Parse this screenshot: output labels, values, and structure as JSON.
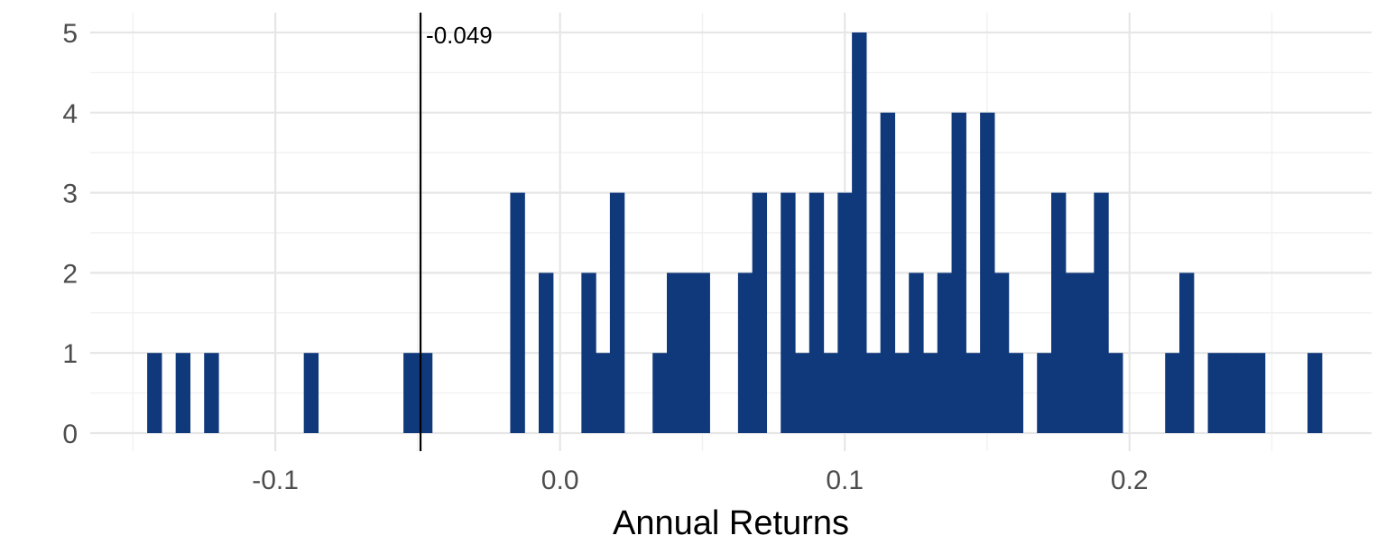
{
  "chart_data": {
    "type": "bar",
    "title": "",
    "xlabel": "Annual Returns",
    "ylabel": "",
    "xlim": [
      -0.165,
      0.285
    ],
    "ylim": [
      0,
      5
    ],
    "x_ticks": [
      "-0.1",
      "0.0",
      "0.1",
      "0.2"
    ],
    "x_tick_values": [
      -0.1,
      0.0,
      0.1,
      0.2
    ],
    "y_ticks": [
      "0",
      "1",
      "2",
      "3",
      "4",
      "5"
    ],
    "y_tick_values": [
      0,
      1,
      2,
      3,
      4,
      5
    ],
    "grid": true,
    "bin_width": 0.005,
    "bars_color": "#10397c",
    "bins": [
      {
        "x": -0.1425,
        "count": 1
      },
      {
        "x": -0.1325,
        "count": 1
      },
      {
        "x": -0.1225,
        "count": 1
      },
      {
        "x": -0.0875,
        "count": 1
      },
      {
        "x": -0.0525,
        "count": 1
      },
      {
        "x": -0.0475,
        "count": 1
      },
      {
        "x": -0.015,
        "count": 3
      },
      {
        "x": -0.005,
        "count": 2
      },
      {
        "x": 0.01,
        "count": 2
      },
      {
        "x": 0.015,
        "count": 1
      },
      {
        "x": 0.02,
        "count": 3
      },
      {
        "x": 0.035,
        "count": 1
      },
      {
        "x": 0.04,
        "count": 2
      },
      {
        "x": 0.045,
        "count": 2
      },
      {
        "x": 0.05,
        "count": 2
      },
      {
        "x": 0.065,
        "count": 2
      },
      {
        "x": 0.07,
        "count": 3
      },
      {
        "x": 0.08,
        "count": 3
      },
      {
        "x": 0.085,
        "count": 1
      },
      {
        "x": 0.09,
        "count": 3
      },
      {
        "x": 0.095,
        "count": 1
      },
      {
        "x": 0.1,
        "count": 3
      },
      {
        "x": 0.105,
        "count": 5
      },
      {
        "x": 0.11,
        "count": 1
      },
      {
        "x": 0.115,
        "count": 4
      },
      {
        "x": 0.12,
        "count": 1
      },
      {
        "x": 0.125,
        "count": 2
      },
      {
        "x": 0.13,
        "count": 1
      },
      {
        "x": 0.135,
        "count": 2
      },
      {
        "x": 0.14,
        "count": 4
      },
      {
        "x": 0.145,
        "count": 1
      },
      {
        "x": 0.15,
        "count": 4
      },
      {
        "x": 0.155,
        "count": 2
      },
      {
        "x": 0.16,
        "count": 1
      },
      {
        "x": 0.17,
        "count": 1
      },
      {
        "x": 0.175,
        "count": 3
      },
      {
        "x": 0.18,
        "count": 2
      },
      {
        "x": 0.185,
        "count": 2
      },
      {
        "x": 0.19,
        "count": 3
      },
      {
        "x": 0.195,
        "count": 1
      },
      {
        "x": 0.215,
        "count": 1
      },
      {
        "x": 0.22,
        "count": 2
      },
      {
        "x": 0.23,
        "count": 1
      },
      {
        "x": 0.235,
        "count": 1
      },
      {
        "x": 0.24,
        "count": 1
      },
      {
        "x": 0.245,
        "count": 1
      },
      {
        "x": 0.265,
        "count": 1
      }
    ],
    "vline": {
      "x": -0.049,
      "label": "-0.049",
      "color": "#000000"
    }
  }
}
